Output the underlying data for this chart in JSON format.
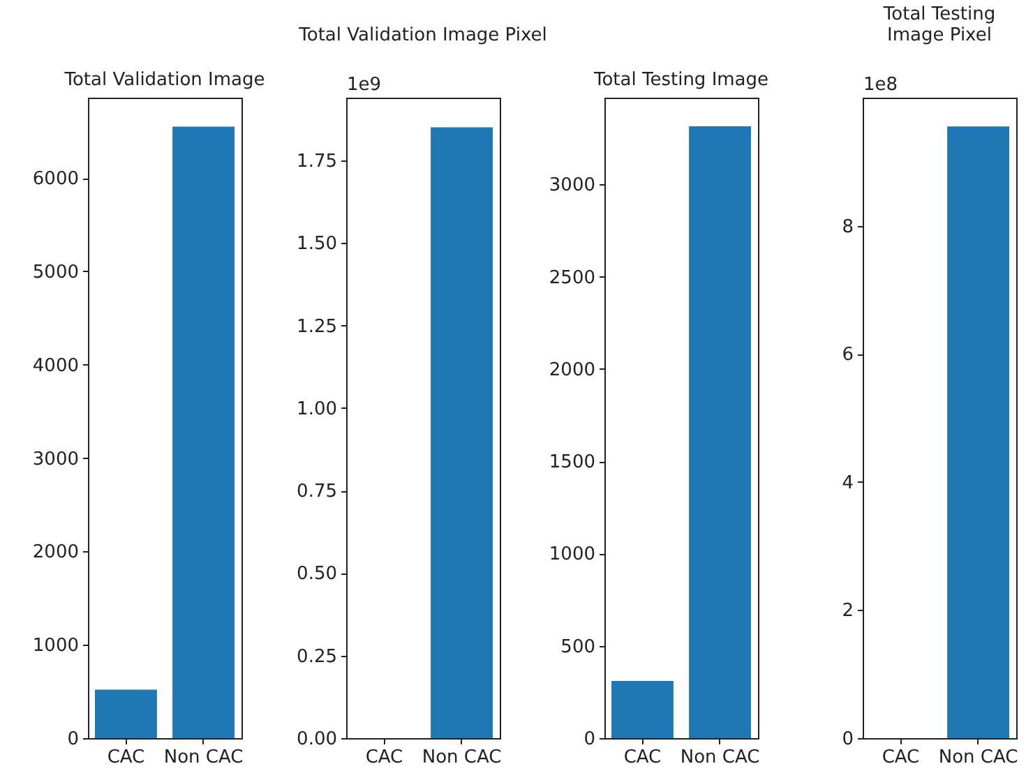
{
  "chart_data": [
    {
      "type": "bar",
      "title": "Total Validation Image",
      "categories": [
        "CAC",
        "Non CAC"
      ],
      "values": [
        520,
        6550
      ],
      "color": "#1f77b4",
      "ylim": [
        0,
        6860
      ],
      "yticks": [
        0,
        1000,
        2000,
        3000,
        4000,
        5000,
        6000
      ],
      "grid": false
    },
    {
      "type": "bar",
      "title": "Total Validation Image Pixel",
      "annotations": [
        "1e9"
      ],
      "categories": [
        "CAC",
        "Non CAC"
      ],
      "values": [
        0,
        1.85
      ],
      "color": "#1f77b4",
      "ylim": [
        0,
        1.94
      ],
      "yticks": [
        {
          "value": 0,
          "label": "0.00"
        },
        {
          "value": 0.25,
          "label": "0.25"
        },
        {
          "value": 0.5,
          "label": "0.50"
        },
        {
          "value": 0.75,
          "label": "0.75"
        },
        {
          "value": 1,
          "label": "1.00"
        },
        {
          "value": 1.25,
          "label": "1.25"
        },
        {
          "value": 1.5,
          "label": "1.50"
        },
        {
          "value": 1.75,
          "label": "1.75"
        }
      ],
      "grid": false
    },
    {
      "type": "bar",
      "title": "Total Testing Image",
      "categories": [
        "CAC",
        "Non CAC"
      ],
      "values": [
        310,
        3315
      ],
      "color": "#1f77b4",
      "ylim": [
        0,
        3470
      ],
      "yticks": [
        0,
        500,
        1000,
        1500,
        2000,
        2500,
        3000
      ],
      "grid": false
    },
    {
      "type": "bar",
      "title": "Total Testing\nImage Pixel",
      "annotations": [
        "1e8"
      ],
      "categories": [
        "CAC",
        "Non CAC"
      ],
      "values": [
        0,
        9.55
      ],
      "color": "#1f77b4",
      "ylim": [
        0,
        10
      ],
      "yticks": [
        0,
        2,
        4,
        6,
        8
      ],
      "grid": false
    }
  ]
}
